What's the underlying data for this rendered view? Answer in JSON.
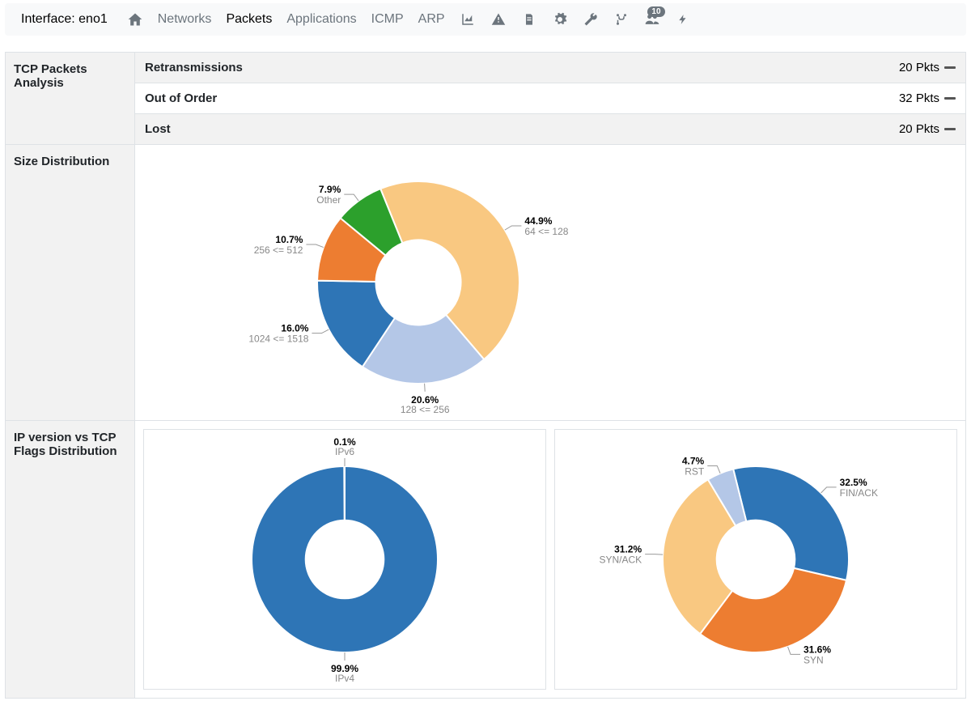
{
  "navbar": {
    "interface_label": "Interface: eno1",
    "links": [
      {
        "label": "Networks",
        "active": false
      },
      {
        "label": "Packets",
        "active": true
      },
      {
        "label": "Applications",
        "active": false
      },
      {
        "label": "ICMP",
        "active": false
      },
      {
        "label": "ARP",
        "active": false
      }
    ],
    "people_badge": "10"
  },
  "tcp_analysis": {
    "title": "TCP Packets Analysis",
    "rows": [
      {
        "name": "Retransmissions",
        "value": "20 Pkts",
        "alt": true
      },
      {
        "name": "Out of Order",
        "value": "32 Pkts",
        "alt": false
      },
      {
        "name": "Lost",
        "value": "20 Pkts",
        "alt": true
      }
    ]
  },
  "size_dist": {
    "title": "Size Distribution",
    "chart": {
      "type": "donut",
      "inner_ratio": 0.42,
      "radius": 125,
      "start_angle_deg": -22,
      "background_color": "#ffffff",
      "label_pct_fontsize": 12,
      "label_name_fontsize": 11,
      "slices": [
        {
          "pct": 44.9,
          "label": "64 <= 128",
          "color": "#f9c881"
        },
        {
          "pct": 20.6,
          "label": "128 <= 256",
          "color": "#b4c7e7"
        },
        {
          "pct": 16.0,
          "label": "1024 <= 1518",
          "color": "#2e75b6"
        },
        {
          "pct": 10.7,
          "label": "256 <= 512",
          "color": "#ed7d31"
        },
        {
          "pct": 7.9,
          "label": "Other",
          "color": "#2ca02c"
        }
      ]
    }
  },
  "ip_flags": {
    "title": "IP version vs TCP Flags Distribution",
    "ip_chart": {
      "type": "donut",
      "inner_ratio": 0.42,
      "radius": 115,
      "start_angle_deg": 0,
      "background_color": "#ffffff",
      "slices": [
        {
          "pct": 99.9,
          "label": "IPv4",
          "color": "#2e75b6",
          "force_bottom_label": true
        },
        {
          "pct": 0.1,
          "label": "IPv6",
          "color": "#6aa6d6",
          "force_top_label": true
        }
      ]
    },
    "flags_chart": {
      "type": "donut",
      "inner_ratio": 0.42,
      "radius": 115,
      "start_angle_deg": -14,
      "background_color": "#ffffff",
      "slices": [
        {
          "pct": 32.5,
          "label": "FIN/ACK",
          "color": "#2e75b6"
        },
        {
          "pct": 31.6,
          "label": "SYN",
          "color": "#ed7d31"
        },
        {
          "pct": 31.2,
          "label": "SYN/ACK",
          "color": "#f9c881"
        },
        {
          "pct": 4.7,
          "label": "RST",
          "color": "#b4c7e7"
        }
      ]
    }
  }
}
